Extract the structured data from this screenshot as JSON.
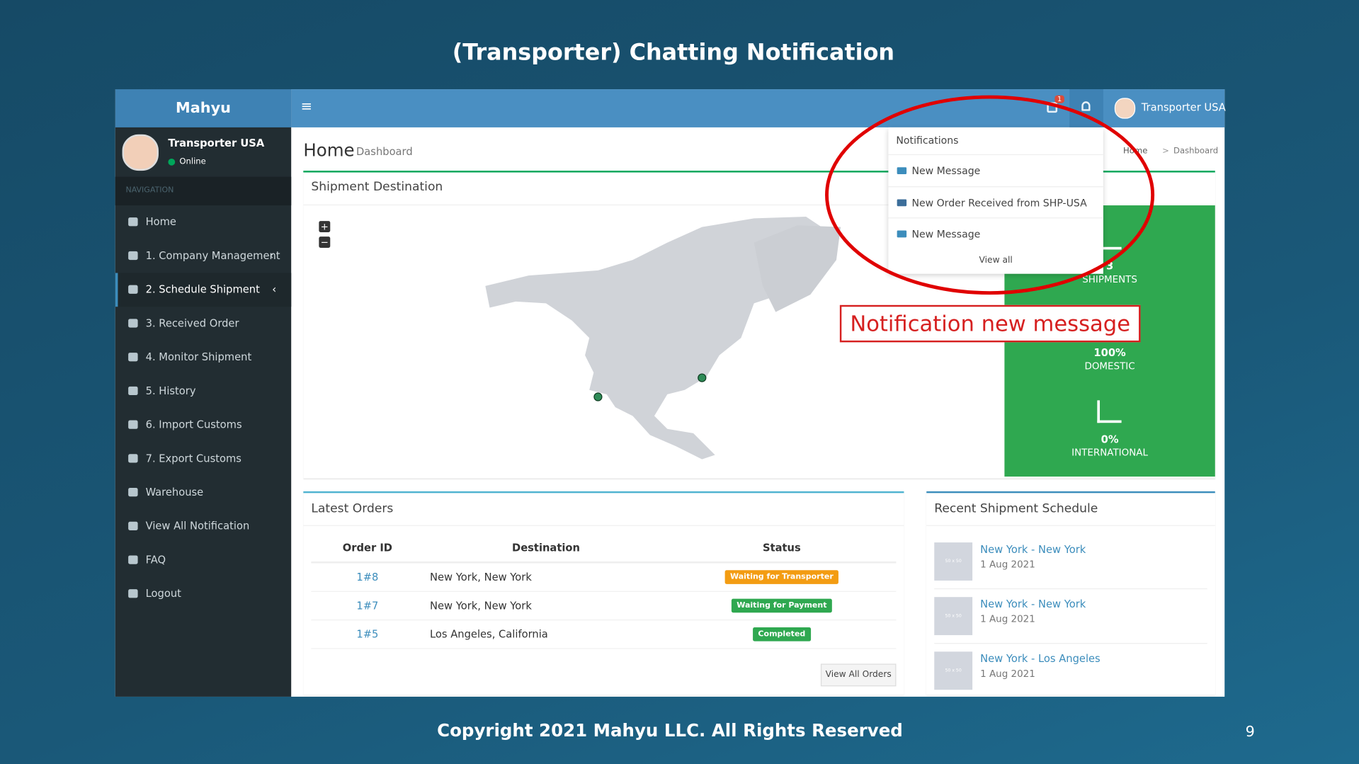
{
  "slide": {
    "title": "(Transporter) Chatting Notification",
    "copyright": "Copyright 2021 Mahyu LLC. All Rights Reserved",
    "page_number": "9"
  },
  "app": {
    "brand": "Mahyu",
    "user": {
      "name": "Transporter USA",
      "status": "Online"
    },
    "nav_header": "NAVIGATION",
    "nav": [
      "Home",
      "1. Company Management",
      "2. Schedule Shipment",
      "3. Received Order",
      "4. Monitor Shipment",
      "5. History",
      "6. Import Customs",
      "7. Export Customs",
      "Warehouse",
      "View All Notification",
      "FAQ",
      "Logout"
    ],
    "topbar_user": "Transporter USA",
    "flag_badge": "1"
  },
  "page": {
    "title": "Home",
    "subtitle": "Dashboard",
    "breadcrumb": [
      "Home",
      "Dashboard"
    ]
  },
  "map_panel": {
    "title": "Shipment Destination"
  },
  "stats": [
    {
      "value": "3",
      "label": "SHIPMENTS"
    },
    {
      "value": "100%",
      "label": "DOMESTIC"
    },
    {
      "value": "0%",
      "label": "INTERNATIONAL"
    }
  ],
  "notifications": {
    "header": "Notifications",
    "items": [
      "New Message",
      "New Order Received from SHP-USA",
      "New Message"
    ],
    "footer": "View all"
  },
  "annotation": "Notification new message",
  "orders": {
    "title": "Latest Orders",
    "columns": [
      "Order ID",
      "Destination",
      "Status"
    ],
    "rows": [
      [
        "1#8",
        "New York, New York",
        "Waiting for Transporter"
      ],
      [
        "1#7",
        "New York, New York",
        "Waiting for Payment"
      ],
      [
        "1#5",
        "Los Angeles, California",
        "Completed"
      ]
    ],
    "button": "View All Orders"
  },
  "schedule": {
    "title": "Recent Shipment Schedule",
    "items": [
      {
        "route": "New York - New York",
        "date": "1 Aug 2021",
        "thumb": "50 x 50"
      },
      {
        "route": "New York - New York",
        "date": "1 Aug 2021",
        "thumb": "50 x 50"
      },
      {
        "route": "New York - Los Angeles",
        "date": "1 Aug 2021",
        "thumb": "50 x 50"
      }
    ]
  }
}
